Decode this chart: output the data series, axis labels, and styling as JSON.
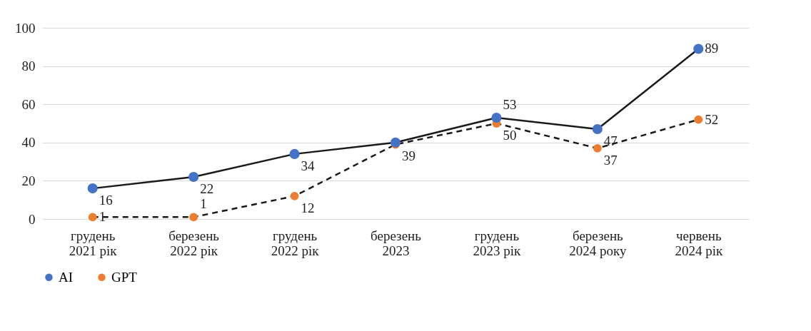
{
  "chart_data": {
    "type": "line",
    "categories": [
      "грудень 2021 рік",
      "березень 2022 рік",
      "грудень 2022 рік",
      "березень 2023",
      "грудень 2023 рік",
      "березень 2024 року",
      "червень 2024 рік"
    ],
    "series": [
      {
        "name": "AI",
        "color": "#4472c4",
        "line_style": "solid",
        "values": [
          16,
          22,
          34,
          40,
          53,
          47,
          89
        ],
        "value_labels": [
          "16",
          "22",
          "34",
          null,
          "53",
          "47",
          "89"
        ]
      },
      {
        "name": "GPT",
        "color": "#ed7d31",
        "line_style": "dashed",
        "values": [
          1,
          1,
          12,
          39,
          50,
          37,
          52
        ],
        "value_labels": [
          "1",
          "1",
          "12",
          "39",
          "50",
          "37",
          "52"
        ]
      }
    ],
    "ylim": [
      0,
      100
    ],
    "yticks": [
      0,
      20,
      40,
      60,
      80,
      100
    ],
    "grid": "y",
    "legend": "bottom",
    "marker": "circle"
  }
}
